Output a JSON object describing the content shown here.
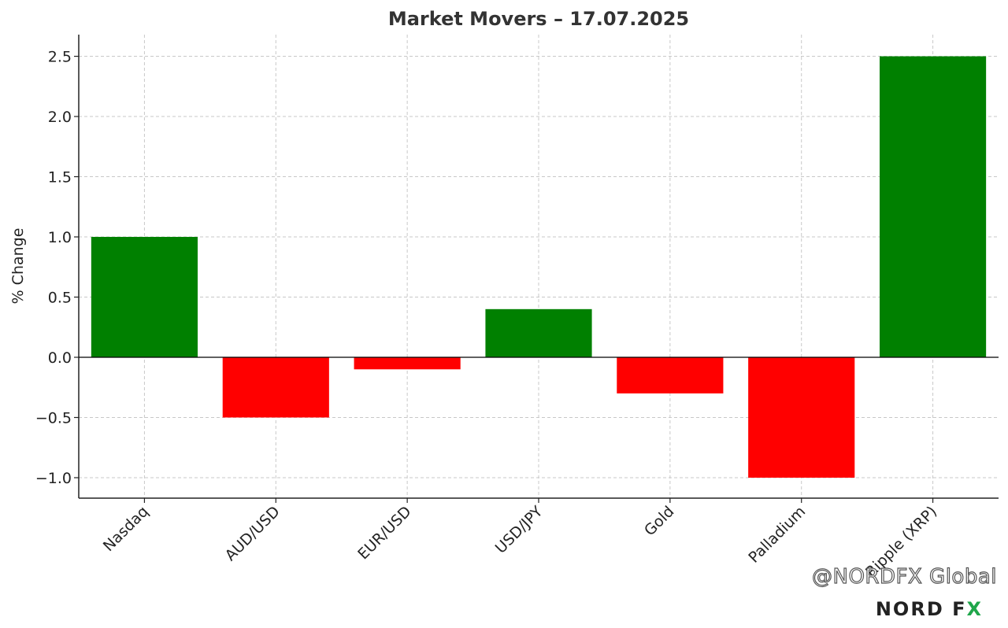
{
  "chart_data": {
    "type": "bar",
    "title": "Market Movers – 17.07.2025",
    "xlabel": "",
    "ylabel": "% Change",
    "categories": [
      "Nasdaq",
      "AUD/USD",
      "EUR/USD",
      "USD/JPY",
      "Gold",
      "Palladium",
      "Ripple (XRP)"
    ],
    "values": [
      1.0,
      -0.5,
      -0.1,
      0.4,
      -0.3,
      -1.0,
      2.5
    ],
    "ylim": [
      -1.17,
      2.68
    ],
    "yticks": [
      -1.0,
      -0.5,
      0.0,
      0.5,
      1.0,
      1.5,
      2.0,
      2.5
    ],
    "ytick_labels": [
      "−1.0",
      "−0.5",
      "0.0",
      "0.5",
      "1.0",
      "1.5",
      "2.0",
      "2.5"
    ],
    "grid": true,
    "colors": {
      "positive": "#008000",
      "negative": "#ff0000"
    }
  },
  "watermark": {
    "handle": "@NORDFX Global",
    "brand": "NORD F",
    "brand_x": "X"
  }
}
